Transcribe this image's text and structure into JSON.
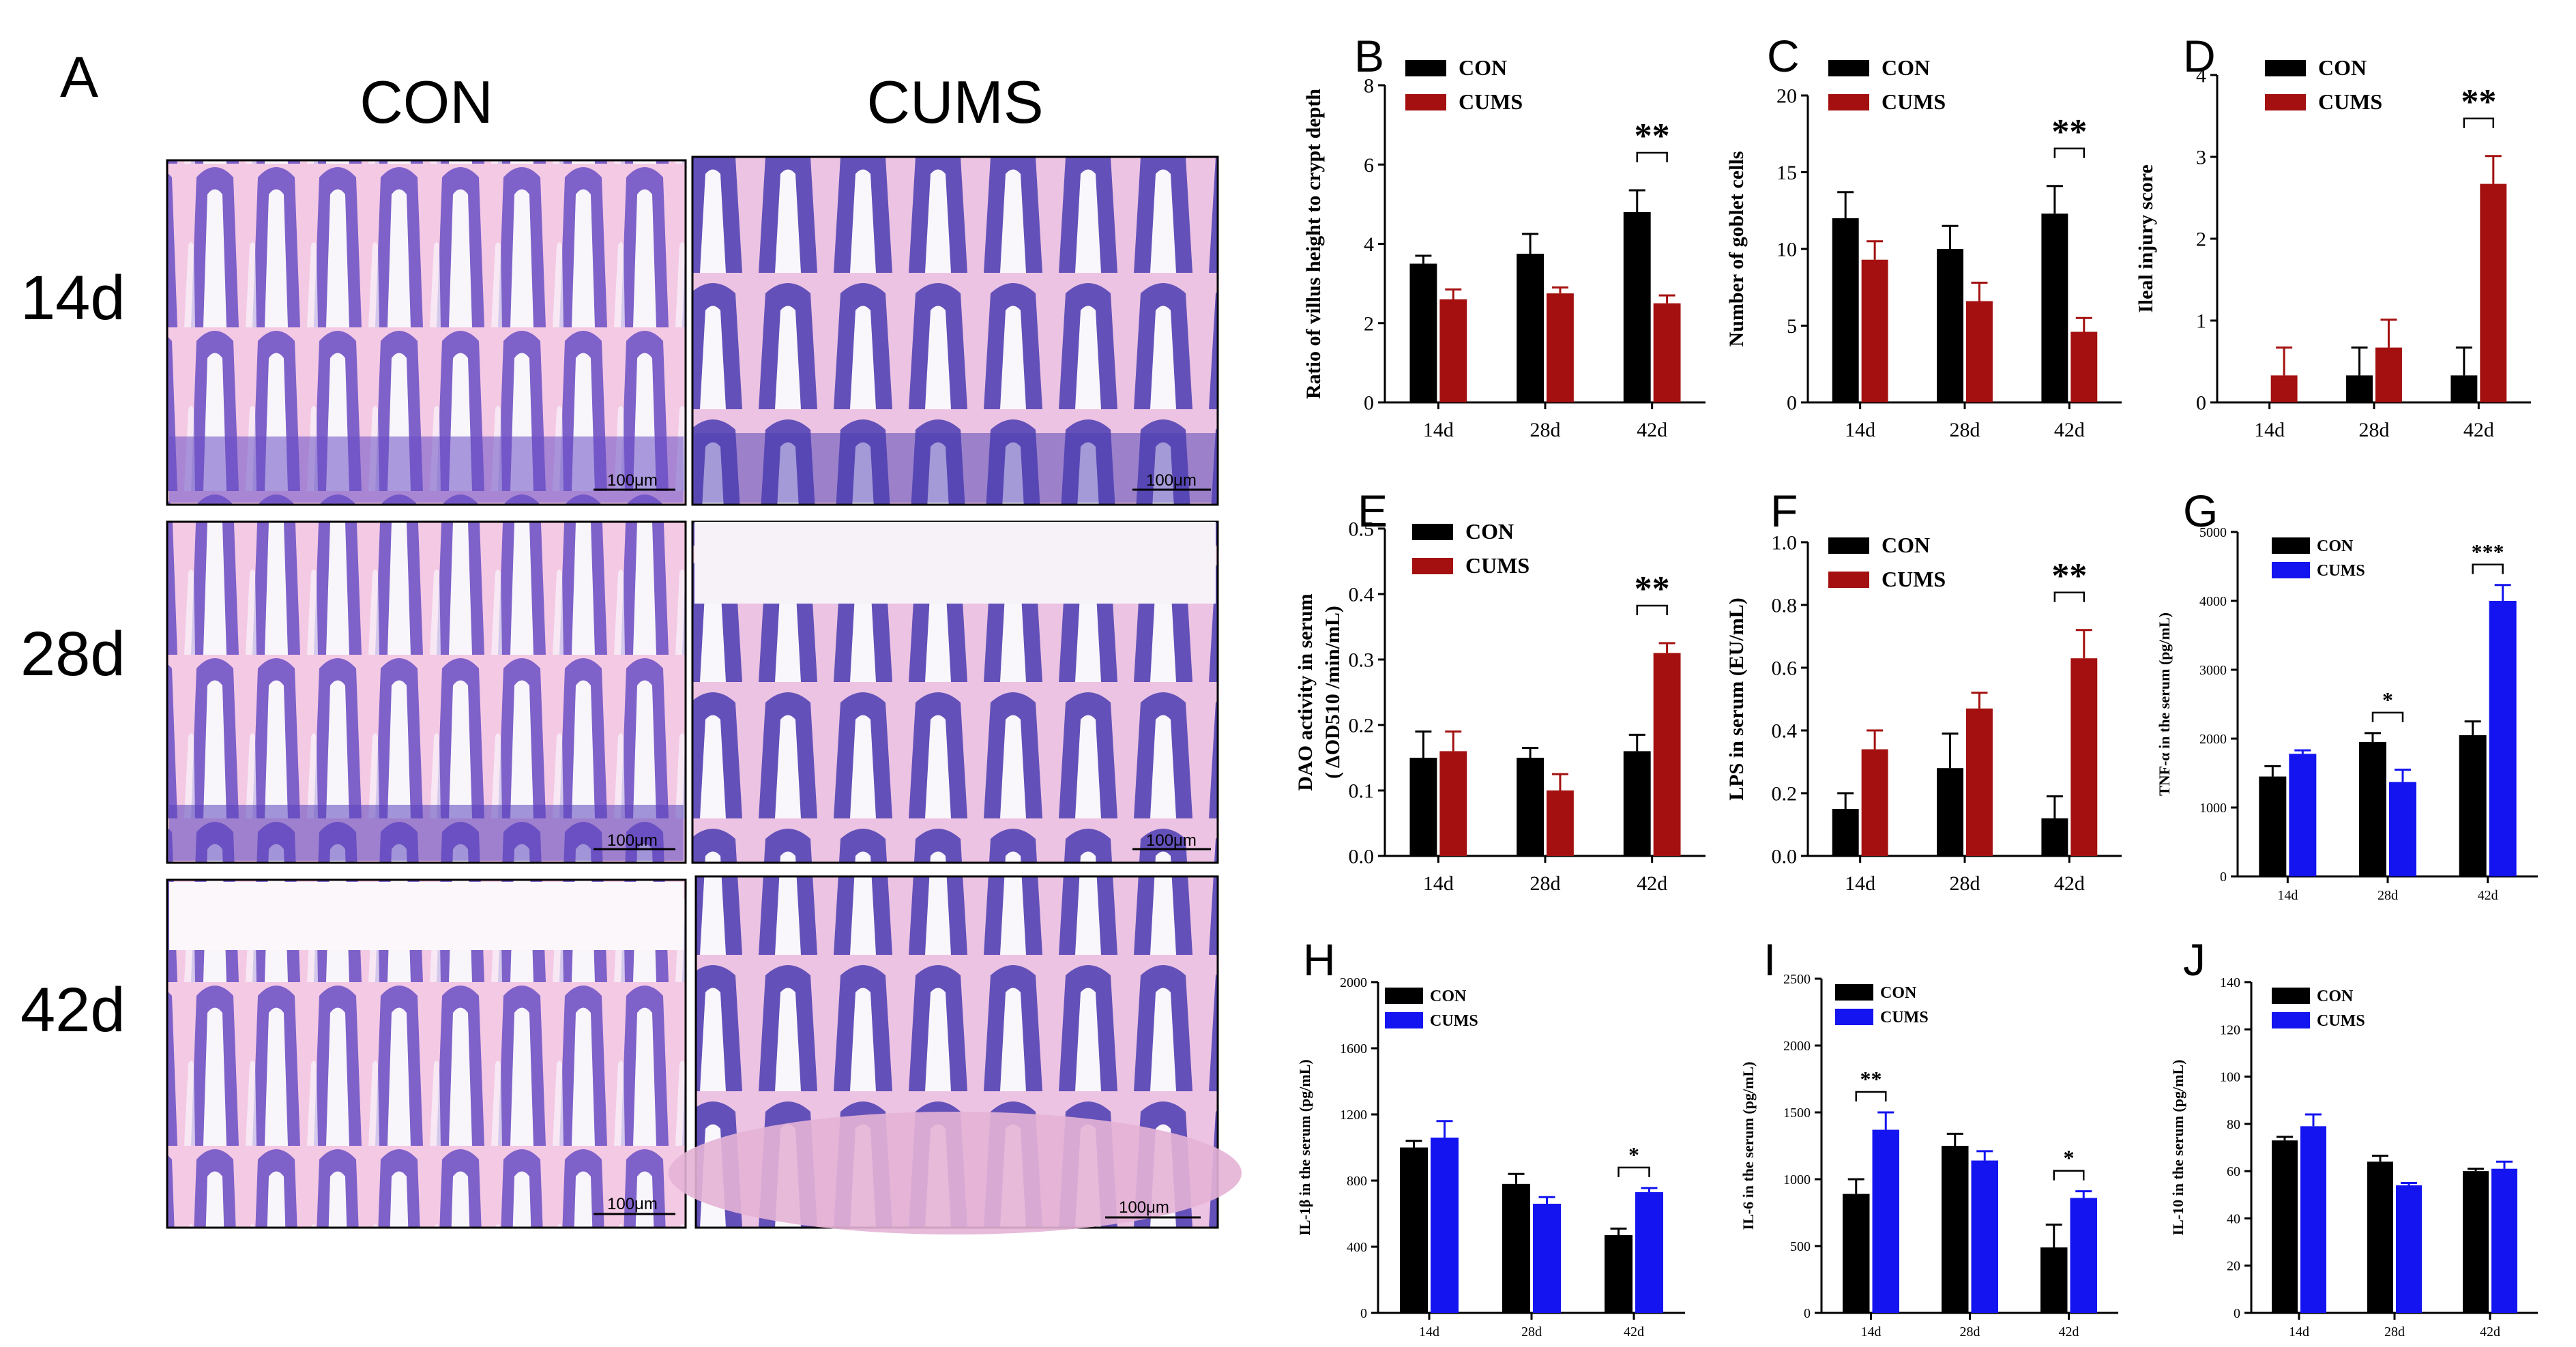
{
  "histology": {
    "panel_label": "A",
    "col_headers": [
      "CON",
      "CUMS"
    ],
    "row_labels": [
      "14d",
      "28d",
      "42d"
    ],
    "scale_text": "100μm"
  },
  "colors": {
    "con": "#000000",
    "cums_red": "#a3100f",
    "cums_blue": "#1414f0"
  },
  "chart_data": [
    {
      "panel": "B",
      "type": "bar",
      "categories": [
        "14d",
        "28d",
        "42d"
      ],
      "series": [
        {
          "name": "CON",
          "values": [
            3.5,
            3.75,
            4.8
          ],
          "errors": [
            0.2,
            0.5,
            0.55
          ]
        },
        {
          "name": "CUMS",
          "values": [
            2.6,
            2.75,
            2.5
          ],
          "errors": [
            0.25,
            0.15,
            0.2
          ]
        }
      ],
      "ylabel": "Ratio of villus height to crypt depth",
      "ylim": [
        0,
        8
      ],
      "yticks": [
        0,
        2,
        4,
        6,
        8
      ],
      "annotations": [
        {
          "category": "42d",
          "text": "**"
        }
      ]
    },
    {
      "panel": "C",
      "type": "bar",
      "categories": [
        "14d",
        "28d",
        "42d"
      ],
      "series": [
        {
          "name": "CON",
          "values": [
            12,
            10,
            12.3
          ],
          "errors": [
            1.7,
            1.5,
            1.8
          ]
        },
        {
          "name": "CUMS",
          "values": [
            9.3,
            6.6,
            4.6
          ],
          "errors": [
            1.2,
            1.2,
            0.9
          ]
        }
      ],
      "ylabel": "Number of goblet cells",
      "ylim": [
        0,
        20
      ],
      "yticks": [
        0,
        5,
        10,
        15,
        20
      ],
      "annotations": [
        {
          "category": "42d",
          "text": "**"
        }
      ]
    },
    {
      "panel": "D",
      "type": "bar",
      "categories": [
        "14d",
        "28d",
        "42d"
      ],
      "series": [
        {
          "name": "CON",
          "values": [
            0,
            0.33,
            0.33
          ],
          "errors": [
            0,
            0.34,
            0.34
          ]
        },
        {
          "name": "CUMS",
          "values": [
            0.33,
            0.67,
            2.67
          ],
          "errors": [
            0.34,
            0.34,
            0.34
          ]
        }
      ],
      "ylabel": "Ileal injury score",
      "ylim": [
        0,
        4
      ],
      "yticks": [
        0,
        1,
        2,
        3,
        4
      ],
      "annotations": [
        {
          "category": "42d",
          "text": "**"
        }
      ]
    },
    {
      "panel": "E",
      "type": "bar",
      "categories": [
        "14d",
        "28d",
        "42d"
      ],
      "series": [
        {
          "name": "CON",
          "values": [
            0.15,
            0.15,
            0.16
          ],
          "errors": [
            0.04,
            0.015,
            0.025
          ]
        },
        {
          "name": "CUMS",
          "values": [
            0.16,
            0.1,
            0.31
          ],
          "errors": [
            0.03,
            0.025,
            0.015
          ]
        }
      ],
      "ylabel": "DAO activity in serum",
      "ylabel2": "( ΔOD510 /min/mL)",
      "ylim": [
        0,
        0.5
      ],
      "yticks": [
        0.0,
        0.1,
        0.2,
        0.3,
        0.4,
        0.5
      ],
      "annotations": [
        {
          "category": "42d",
          "text": "**"
        }
      ]
    },
    {
      "panel": "F",
      "type": "bar",
      "categories": [
        "14d",
        "28d",
        "42d"
      ],
      "series": [
        {
          "name": "CON",
          "values": [
            0.15,
            0.28,
            0.12
          ],
          "errors": [
            0.05,
            0.11,
            0.07
          ]
        },
        {
          "name": "CUMS",
          "values": [
            0.34,
            0.47,
            0.63
          ],
          "errors": [
            0.06,
            0.05,
            0.09
          ]
        }
      ],
      "ylabel": "LPS in serum (EU/mL)",
      "ylim": [
        0,
        1.0
      ],
      "yticks": [
        0.0,
        0.2,
        0.4,
        0.6,
        0.8,
        1.0
      ],
      "annotations": [
        {
          "category": "42d",
          "text": "**"
        }
      ]
    },
    {
      "panel": "G",
      "type": "bar",
      "categories": [
        "14d",
        "28d",
        "42d"
      ],
      "series": [
        {
          "name": "CON",
          "values": [
            1450,
            1950,
            2050
          ],
          "errors": [
            150,
            130,
            200
          ]
        },
        {
          "name": "CUMS",
          "values": [
            1780,
            1370,
            4000
          ],
          "errors": [
            50,
            180,
            230
          ]
        }
      ],
      "ylabel": "TNF-α in the serum (pg/mL)",
      "ylim": [
        0,
        5000
      ],
      "yticks": [
        0,
        1000,
        2000,
        3000,
        4000,
        5000
      ],
      "annotations": [
        {
          "category": "28d",
          "text": "*"
        },
        {
          "category": "42d",
          "text": "***"
        }
      ]
    },
    {
      "panel": "H",
      "type": "bar",
      "categories": [
        "14d",
        "28d",
        "42d"
      ],
      "series": [
        {
          "name": "CON",
          "values": [
            1000,
            780,
            470
          ],
          "errors": [
            40,
            60,
            40
          ]
        },
        {
          "name": "CUMS",
          "values": [
            1060,
            660,
            730
          ],
          "errors": [
            100,
            40,
            25
          ]
        }
      ],
      "ylabel": "IL-1β in the serum (pg/mL)",
      "ylim": [
        0,
        2000
      ],
      "yticks": [
        0,
        400,
        800,
        1200,
        1600,
        2000
      ],
      "annotations": [
        {
          "category": "42d",
          "text": "*"
        }
      ]
    },
    {
      "panel": "I",
      "type": "bar",
      "categories": [
        "14d",
        "28d",
        "42d"
      ],
      "series": [
        {
          "name": "CON",
          "values": [
            890,
            1250,
            490
          ],
          "errors": [
            110,
            90,
            170
          ]
        },
        {
          "name": "CUMS",
          "values": [
            1370,
            1140,
            860
          ],
          "errors": [
            130,
            70,
            50
          ]
        }
      ],
      "ylabel": "IL-6 in the serum (pg/mL)",
      "ylim": [
        0,
        2500
      ],
      "yticks": [
        0,
        500,
        1000,
        1500,
        2000,
        2500
      ],
      "annotations": [
        {
          "category": "14d",
          "text": "**"
        },
        {
          "category": "42d",
          "text": "*"
        }
      ]
    },
    {
      "panel": "J",
      "type": "bar",
      "categories": [
        "14d",
        "28d",
        "42d"
      ],
      "series": [
        {
          "name": "CON",
          "values": [
            73,
            64,
            60
          ],
          "errors": [
            1.5,
            2.5,
            1
          ]
        },
        {
          "name": "CUMS",
          "values": [
            79,
            54,
            61
          ],
          "errors": [
            5,
            1,
            3
          ]
        }
      ],
      "ylabel": "IL-10 in the serum (pg/mL)",
      "ylim": [
        0,
        140
      ],
      "yticks": [
        0,
        20,
        40,
        60,
        80,
        100,
        120,
        140
      ],
      "annotations": []
    }
  ]
}
